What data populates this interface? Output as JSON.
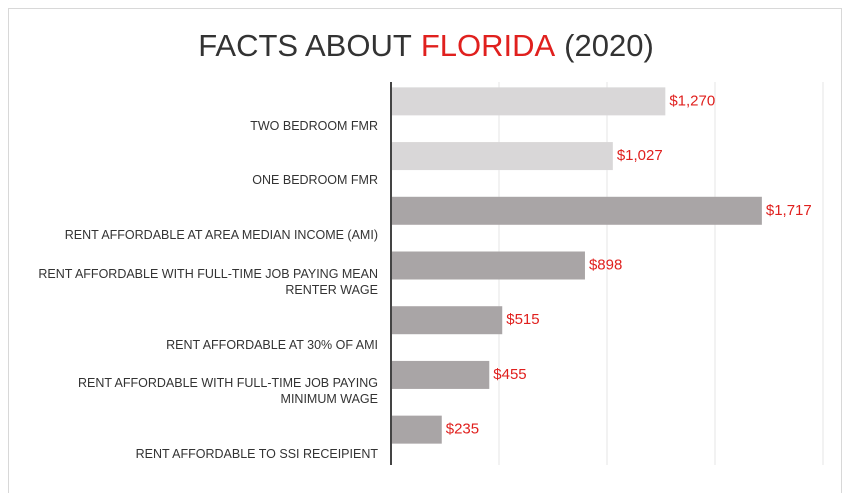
{
  "chart_data": {
    "type": "hbar",
    "title": [
      "FACTS ABOUT",
      "FLORIDA",
      "(2020)"
    ],
    "title_colors": [
      "#333333",
      "#e0201e",
      "#333333"
    ],
    "categories": [
      "TWO BEDROOM FMR",
      "ONE BEDROOM FMR",
      "RENT AFFORDABLE AT AREA MEDIAN INCOME (AMI)",
      "RENT AFFORDABLE WITH FULL-TIME JOB PAYING MEAN RENTER WAGE",
      "RENT AFFORDABLE AT 30% OF AMI",
      "RENT AFFORDABLE WITH FULL-TIME JOB PAYING MINIMUM WAGE",
      "RENT AFFORDABLE TO SSI RECEIPIENT"
    ],
    "values": [
      1270,
      1027,
      1717,
      898,
      515,
      455,
      235
    ],
    "value_labels": [
      "$1,270",
      "$1,027",
      "$1,717",
      "$898",
      "$515",
      "$455",
      "$235"
    ],
    "colors": [
      "#d9d7d8",
      "#d9d7d8",
      "#a9a5a6",
      "#a9a5a6",
      "#a9a5a6",
      "#a9a5a6",
      "#a9a5a6"
    ],
    "label_color": "#e0201e",
    "xlim": [
      0,
      2000
    ],
    "xticks": [
      0,
      500,
      1000,
      1500,
      2000
    ],
    "grid": true
  }
}
